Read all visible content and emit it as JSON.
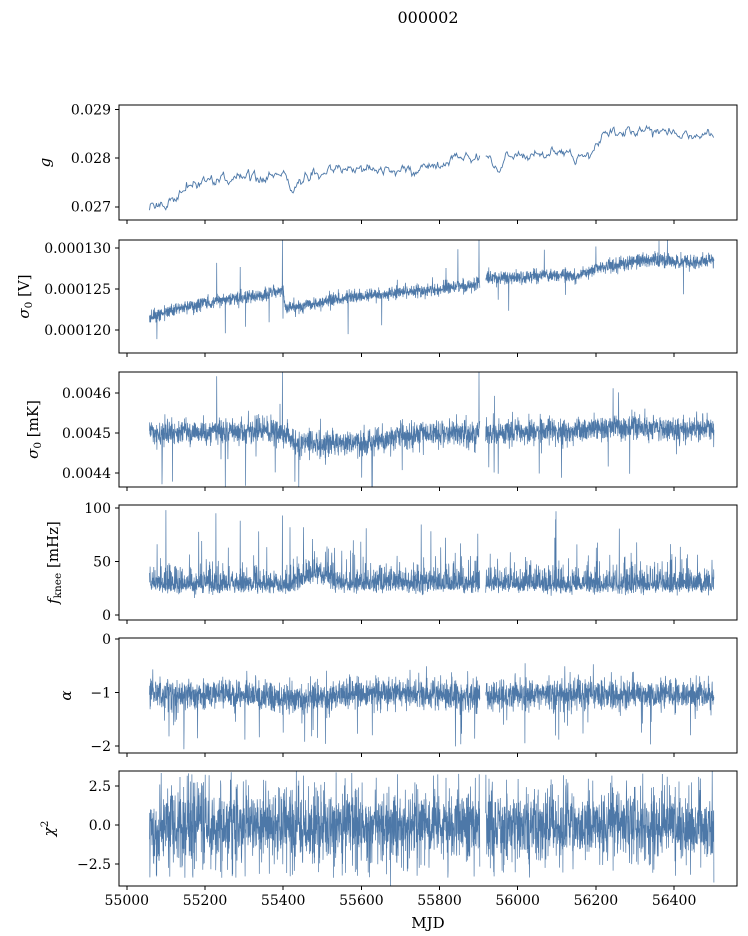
{
  "title": "000002",
  "chart_data": {
    "type": "line",
    "title": "000002",
    "xlabel": "MJD",
    "xlim": [
      54980,
      56561
    ],
    "x_ticks": [
      55000,
      55200,
      55400,
      55600,
      55800,
      56000,
      56200,
      56400
    ],
    "x_tick_labels": [
      "55000",
      "55200",
      "55400",
      "55600",
      "55800",
      "56000",
      "56200",
      "56400"
    ],
    "x_data_range": [
      55058,
      56502
    ],
    "data_gap_mjd": [
      55903,
      55918
    ],
    "line_color": "#4d78a8",
    "n_panels": 6,
    "panels": [
      {
        "name": "g",
        "ylabel_segments": [
          {
            "t": "g",
            "i": true
          }
        ],
        "ylim": [
          0.02673,
          0.02909
        ],
        "yticks": [
          0.027,
          0.028,
          0.029
        ],
        "ytick_labels": [
          "0.027",
          "0.028",
          "0.029"
        ],
        "model": "ar",
        "seed": 11,
        "dt": 2.2,
        "noise": 4.2e-05,
        "ar": 0.6,
        "trend": [
          [
            55058,
            0.02688
          ],
          [
            55080,
            0.027
          ],
          [
            55100,
            0.02706
          ],
          [
            55130,
            0.02716
          ],
          [
            55160,
            0.02744
          ],
          [
            55200,
            0.02752
          ],
          [
            55230,
            0.02755
          ],
          [
            55260,
            0.0275
          ],
          [
            55290,
            0.02762
          ],
          [
            55320,
            0.0277
          ],
          [
            55340,
            0.02758
          ],
          [
            55360,
            0.02762
          ],
          [
            55380,
            0.02765
          ],
          [
            55400,
            0.02768
          ],
          [
            55425,
            0.02729
          ],
          [
            55440,
            0.02752
          ],
          [
            55460,
            0.02762
          ],
          [
            55480,
            0.02768
          ],
          [
            55500,
            0.0277
          ],
          [
            55540,
            0.02775
          ],
          [
            55570,
            0.02778
          ],
          [
            55600,
            0.02776
          ],
          [
            55620,
            0.02782
          ],
          [
            55640,
            0.02776
          ],
          [
            55660,
            0.0278
          ],
          [
            55680,
            0.02772
          ],
          [
            55700,
            0.02778
          ],
          [
            55720,
            0.02775
          ],
          [
            55740,
            0.0277
          ],
          [
            55760,
            0.02788
          ],
          [
            55780,
            0.02792
          ],
          [
            55800,
            0.02782
          ],
          [
            55820,
            0.02795
          ],
          [
            55840,
            0.02805
          ],
          [
            55860,
            0.02798
          ],
          [
            55880,
            0.028
          ],
          [
            55900,
            0.02798
          ],
          [
            55920,
            0.02805
          ],
          [
            55940,
            0.02795
          ],
          [
            55955,
            0.02772
          ],
          [
            55970,
            0.02802
          ],
          [
            55990,
            0.02808
          ],
          [
            56010,
            0.02802
          ],
          [
            56030,
            0.02805
          ],
          [
            56050,
            0.02812
          ],
          [
            56070,
            0.02808
          ],
          [
            56090,
            0.0281
          ],
          [
            56110,
            0.02805
          ],
          [
            56130,
            0.02802
          ],
          [
            56150,
            0.028
          ],
          [
            56170,
            0.02808
          ],
          [
            56190,
            0.02812
          ],
          [
            56200,
            0.0283
          ],
          [
            56220,
            0.02848
          ],
          [
            56240,
            0.02852
          ],
          [
            56260,
            0.02846
          ],
          [
            56280,
            0.02855
          ],
          [
            56300,
            0.02852
          ],
          [
            56320,
            0.02858
          ],
          [
            56330,
            0.0287
          ],
          [
            56340,
            0.02856
          ],
          [
            56360,
            0.0285
          ],
          [
            56380,
            0.02858
          ],
          [
            56400,
            0.02852
          ],
          [
            56420,
            0.02848
          ],
          [
            56440,
            0.0285
          ],
          [
            56460,
            0.02846
          ],
          [
            56480,
            0.02845
          ],
          [
            56500,
            0.02842
          ]
        ],
        "spikes": []
      },
      {
        "name": "sigma0-V",
        "ylabel_segments": [
          {
            "t": "σ",
            "i": true
          },
          {
            "t": "0",
            "sub": true
          },
          {
            "t": " [V]"
          }
        ],
        "ylim": [
          0.0001172,
          0.000131
        ],
        "yticks": [
          0.00012,
          0.000125,
          0.00013
        ],
        "ytick_labels": [
          "0.000120",
          "0.000125",
          "0.000130"
        ],
        "model": "gauss",
        "seed": 22,
        "dt": 0.5,
        "noise": 4.2e-07,
        "down_rate": 0.004,
        "down_amp": 3.5e-06,
        "up_rate": 0.002,
        "up_amp": 2.5e-06,
        "trend": [
          [
            55058,
            0.0001215
          ],
          [
            55100,
            0.0001222
          ],
          [
            55150,
            0.0001228
          ],
          [
            55200,
            0.0001232
          ],
          [
            55250,
            0.0001237
          ],
          [
            55300,
            0.000124
          ],
          [
            55350,
            0.0001243
          ],
          [
            55398,
            0.0001247
          ],
          [
            55406,
            0.0001227
          ],
          [
            55450,
            0.000123
          ],
          [
            55500,
            0.0001235
          ],
          [
            55600,
            0.0001241
          ],
          [
            55700,
            0.0001246
          ],
          [
            55800,
            0.000125
          ],
          [
            55850,
            0.0001253
          ],
          [
            55902,
            0.0001257
          ],
          [
            55918,
            0.0001263
          ],
          [
            56000,
            0.0001265
          ],
          [
            56100,
            0.0001267
          ],
          [
            56150,
            0.0001265
          ],
          [
            56200,
            0.0001275
          ],
          [
            56250,
            0.000128
          ],
          [
            56300,
            0.0001284
          ],
          [
            56350,
            0.0001286
          ],
          [
            56400,
            0.0001284
          ],
          [
            56450,
            0.0001283
          ],
          [
            56500,
            0.0001285
          ]
        ],
        "spikes": [
          [
            55230,
            0.0001282
          ],
          [
            55290,
            0.0001277
          ],
          [
            55398,
            0.0001313
          ],
          [
            55901,
            0.000134
          ],
          [
            56068,
            0.0001298
          ],
          [
            55077,
            0.0001189
          ],
          [
            55252,
            0.0001196
          ],
          [
            55304,
            0.0001204
          ],
          [
            55652,
            0.0001206
          ],
          [
            55950,
            0.0001237
          ],
          [
            56122,
            0.0001243
          ]
        ]
      },
      {
        "name": "sigma0-mK",
        "ylabel_segments": [
          {
            "t": "σ",
            "i": true
          },
          {
            "t": "0",
            "sub": true
          },
          {
            "t": " [mK]"
          }
        ],
        "ylim": [
          0.004365,
          0.0046525
        ],
        "yticks": [
          0.0044,
          0.0045,
          0.0046
        ],
        "ytick_labels": [
          "0.0044",
          "0.0045",
          "0.0046"
        ],
        "model": "gauss",
        "seed": 33,
        "dt": 0.5,
        "noise": 1.6e-05,
        "down_rate": 0.006,
        "down_amp": 8e-05,
        "up_rate": 0.004,
        "up_amp": 6e-05,
        "trend": [
          [
            55058,
            0.0045
          ],
          [
            55200,
            0.004502
          ],
          [
            55350,
            0.004505
          ],
          [
            55400,
            0.004498
          ],
          [
            55430,
            0.004478
          ],
          [
            55500,
            0.004472
          ],
          [
            55600,
            0.004475
          ],
          [
            55700,
            0.004495
          ],
          [
            55800,
            0.004498
          ],
          [
            55902,
            0.0045
          ],
          [
            55918,
            0.0045
          ],
          [
            56000,
            0.004503
          ],
          [
            56100,
            0.004505
          ],
          [
            56200,
            0.004508
          ],
          [
            56300,
            0.004515
          ],
          [
            56400,
            0.00451
          ],
          [
            56500,
            0.004512
          ]
        ],
        "spikes": [
          [
            55230,
            0.004642
          ],
          [
            55398,
            0.00472
          ],
          [
            55901,
            0.00472
          ],
          [
            55090,
            0.004372
          ],
          [
            55252,
            0.004358
          ],
          [
            55304,
            0.004368
          ],
          [
            55430,
            0.004378
          ],
          [
            55628,
            0.004348
          ],
          [
            55950,
            0.004398
          ]
        ]
      },
      {
        "name": "fknee",
        "ylabel_segments": [
          {
            "t": "f",
            "i": true
          },
          {
            "t": "knee",
            "sub": true
          },
          {
            "t": " [mHz]"
          }
        ],
        "ylim": [
          -4.7,
          102.8
        ],
        "yticks": [
          0,
          50,
          100
        ],
        "ytick_labels": [
          "0",
          "50",
          "100"
        ],
        "model": "skew",
        "seed": 44,
        "dt": 0.5,
        "noise": 3,
        "trend": [
          [
            55058,
            30
          ],
          [
            55430,
            30
          ],
          [
            55455,
            37
          ],
          [
            55485,
            40
          ],
          [
            55520,
            34
          ],
          [
            55560,
            31
          ],
          [
            56500,
            30
          ]
        ],
        "spikes": [
          [
            55100,
            98
          ],
          [
            55228,
            95
          ],
          [
            55290,
            88
          ],
          [
            55398,
            93
          ],
          [
            55452,
            82
          ],
          [
            55475,
            71
          ],
          [
            55512,
            64
          ],
          [
            55790,
            55
          ],
          [
            55840,
            58
          ],
          [
            55898,
            76
          ],
          [
            56098,
            97
          ],
          [
            56290,
            58
          ],
          [
            56420,
            52
          ]
        ]
      },
      {
        "name": "alpha",
        "ylabel_segments": [
          {
            "t": "α",
            "i": true
          }
        ],
        "ylim": [
          -2.13,
          0.02
        ],
        "yticks": [
          -2,
          -1,
          0
        ],
        "ytick_labels": [
          "−2",
          "−1",
          "0"
        ],
        "model": "gauss",
        "seed": 55,
        "dt": 0.5,
        "noise": 0.14,
        "down_rate": 0.01,
        "down_amp": 0.55,
        "up_rate": 0.008,
        "up_amp": 0.38,
        "trend": [
          [
            55058,
            -1.02
          ],
          [
            55300,
            -1.05
          ],
          [
            55430,
            -1.12
          ],
          [
            55520,
            -1.1
          ],
          [
            55600,
            -1.0
          ],
          [
            55700,
            -1.02
          ],
          [
            55800,
            -1.05
          ],
          [
            55902,
            -1.08
          ],
          [
            55918,
            -1.05
          ],
          [
            56000,
            -1.03
          ],
          [
            56100,
            -1.05
          ],
          [
            56300,
            -1.02
          ],
          [
            56500,
            -1.05
          ]
        ],
        "spikes": [
          [
            55108,
            -1.82
          ],
          [
            55302,
            -1.88
          ],
          [
            55455,
            -1.92
          ],
          [
            55508,
            -1.96
          ],
          [
            55628,
            -1.8
          ],
          [
            55890,
            -1.86
          ],
          [
            56105,
            -1.88
          ],
          [
            56340,
            -1.97
          ],
          [
            56442,
            -1.8
          ]
        ]
      },
      {
        "name": "chi2",
        "ylabel_segments": [
          {
            "t": "χ",
            "i": true
          },
          {
            "t": "2",
            "sup": true
          }
        ],
        "ylim": [
          -3.91,
          3.46
        ],
        "yticks": [
          -2.5,
          0.0,
          2.5
        ],
        "ytick_labels": [
          "−2.5",
          "0.0",
          "2.5"
        ],
        "model": "heavy",
        "seed": 66,
        "dt": 0.5,
        "noise": 1.05,
        "trend": [
          [
            55058,
            0
          ],
          [
            56500,
            0
          ]
        ],
        "spikes": []
      }
    ]
  }
}
